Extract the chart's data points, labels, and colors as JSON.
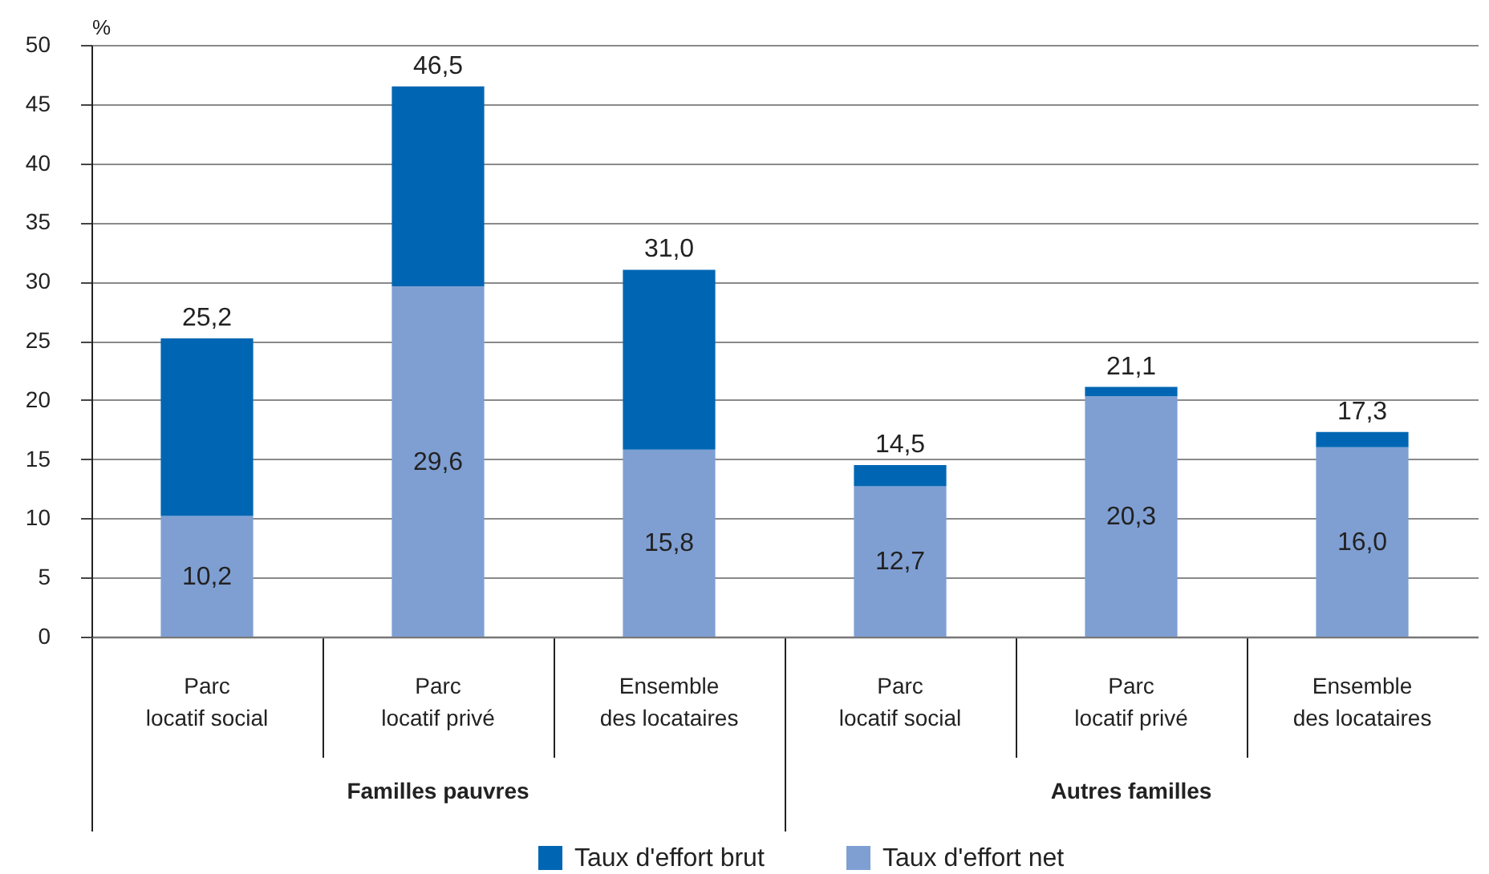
{
  "chart_data": {
    "type": "bar",
    "stacked": true,
    "categories": [
      "Parc locatif social",
      "Parc locatif privé",
      "Ensemble des locataires",
      "Parc locatif social",
      "Parc locatif privé",
      "Ensemble des locataires"
    ],
    "series": [
      {
        "name": "Taux d'effort net",
        "color": "#7f9fd3",
        "values": [
          10.2,
          29.6,
          15.8,
          12.7,
          20.3,
          16.0
        ],
        "value_labels": [
          "10,2",
          "29,6",
          "15,8",
          "12,7",
          "20,3",
          "16,0"
        ]
      },
      {
        "name": "Taux d'effort brut",
        "color": "#0066b3",
        "values": [
          15.0,
          16.9,
          15.2,
          1.8,
          0.8,
          1.3
        ]
      }
    ],
    "totals": [
      "25,2",
      "46,5",
      "31,0",
      "14,5",
      "21,1",
      "17,3"
    ],
    "ylabel": "%",
    "ylim": [
      0,
      50
    ],
    "yticks": [
      0,
      5,
      10,
      15,
      20,
      25,
      30,
      35,
      40,
      45,
      50
    ],
    "grid": "y",
    "legend": "bottom",
    "annotations": [
      "Familles pauvres",
      "Autres familles"
    ]
  }
}
